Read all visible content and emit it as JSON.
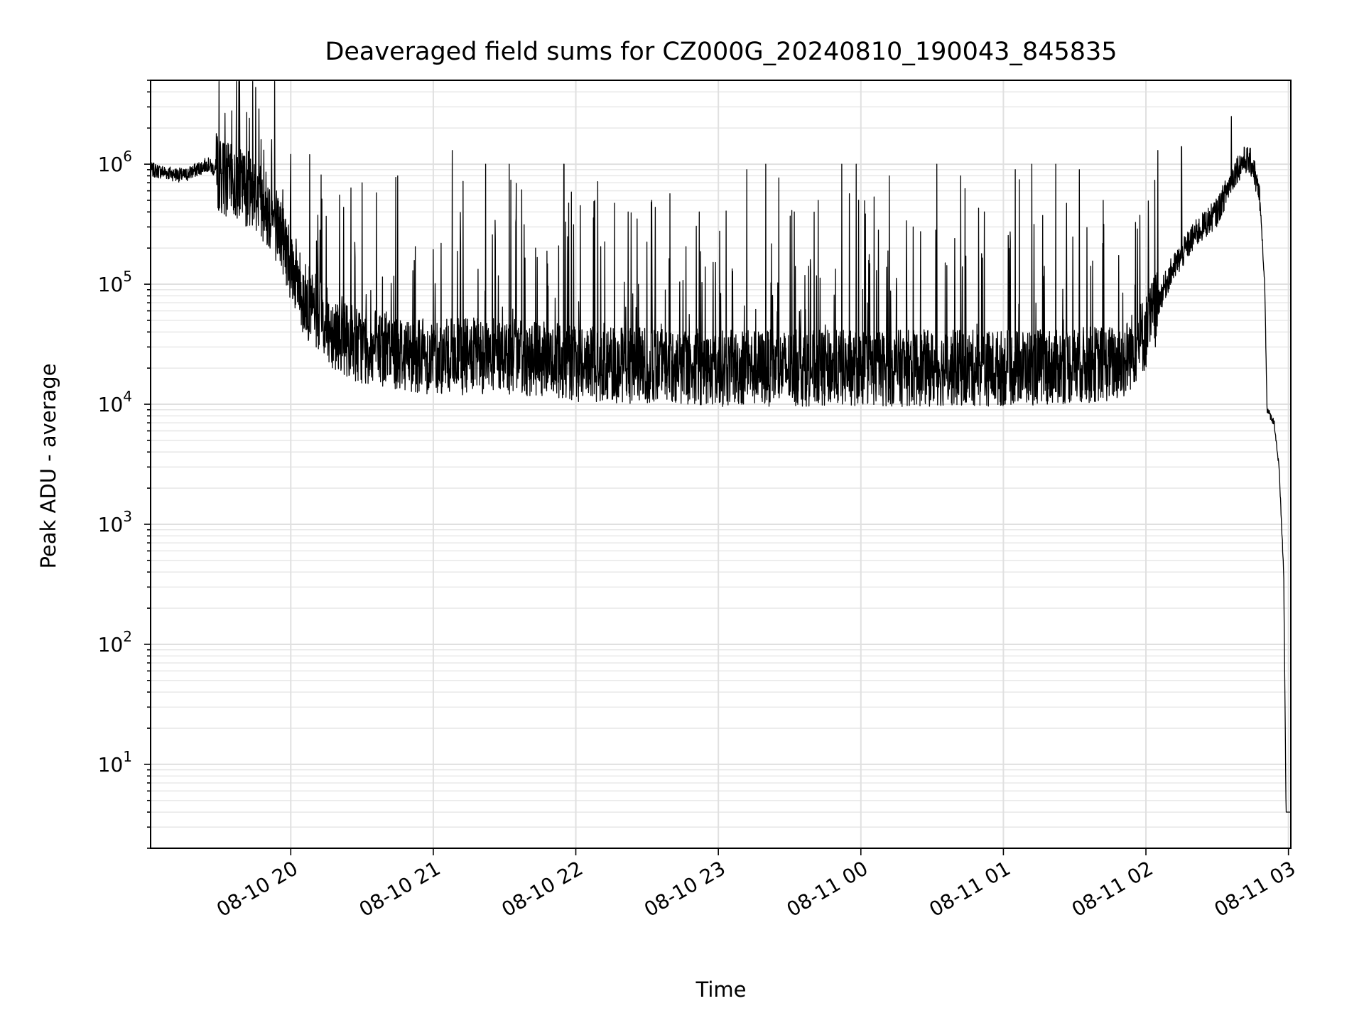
{
  "chart_data": {
    "type": "line",
    "title": "Deaveraged field sums for CZ000G_20240810_190043_845835",
    "xlabel": "Time",
    "ylabel": "Peak ADU - average",
    "yscale": "log",
    "ylim": [
      2,
      5000000
    ],
    "xlim": [
      "2024-08-10 19:01",
      "2024-08-11 03:01"
    ],
    "grid": true,
    "line_color": "#000000",
    "x_ticks": [
      {
        "t": "2024-08-10 20:00",
        "label": "08-10 20"
      },
      {
        "t": "2024-08-10 21:00",
        "label": "08-10 21"
      },
      {
        "t": "2024-08-10 22:00",
        "label": "08-10 22"
      },
      {
        "t": "2024-08-10 23:00",
        "label": "08-10 23"
      },
      {
        "t": "2024-08-11 00:00",
        "label": "08-11 00"
      },
      {
        "t": "2024-08-11 01:00",
        "label": "08-11 01"
      },
      {
        "t": "2024-08-11 02:00",
        "label": "08-11 02"
      },
      {
        "t": "2024-08-11 03:00",
        "label": "08-11 03"
      }
    ],
    "y_ticks": [
      {
        "value": 10,
        "base": "10",
        "exp": "1"
      },
      {
        "value": 100,
        "base": "10",
        "exp": "2"
      },
      {
        "value": 1000,
        "base": "10",
        "exp": "3"
      },
      {
        "value": 10000,
        "base": "10",
        "exp": "4"
      },
      {
        "value": 100000,
        "base": "10",
        "exp": "5"
      },
      {
        "value": 1000000,
        "base": "10",
        "exp": "6"
      }
    ],
    "series": [
      {
        "baseline": [
          [
            "2024-08-10 19:01",
            900000
          ],
          [
            "2024-08-10 19:15",
            800000
          ],
          [
            "2024-08-10 19:25",
            1000000
          ],
          [
            "2024-08-10 19:35",
            700000
          ],
          [
            "2024-08-10 19:45",
            600000
          ],
          [
            "2024-08-10 19:55",
            300000
          ],
          [
            "2024-08-10 20:05",
            80000
          ],
          [
            "2024-08-10 20:15",
            45000
          ],
          [
            "2024-08-10 20:30",
            30000
          ],
          [
            "2024-08-10 21:00",
            25000
          ],
          [
            "2024-08-10 21:30",
            25000
          ],
          [
            "2024-08-10 22:00",
            22000
          ],
          [
            "2024-08-10 23:00",
            20000
          ],
          [
            "2024-08-11 00:00",
            20000
          ],
          [
            "2024-08-11 01:00",
            20000
          ],
          [
            "2024-08-11 01:50",
            22000
          ],
          [
            "2024-08-11 02:00",
            40000
          ],
          [
            "2024-08-11 02:10",
            120000
          ],
          [
            "2024-08-11 02:20",
            250000
          ],
          [
            "2024-08-11 02:30",
            400000
          ],
          [
            "2024-08-11 02:38",
            900000
          ],
          [
            "2024-08-11 02:42",
            1100000
          ],
          [
            "2024-08-11 02:45",
            1000000
          ],
          [
            "2024-08-11 02:48",
            500000
          ],
          [
            "2024-08-11 02:50",
            100000
          ],
          [
            "2024-08-11 02:51",
            9000
          ],
          [
            "2024-08-11 02:54",
            7000
          ],
          [
            "2024-08-11 02:56",
            3000
          ],
          [
            "2024-08-11 02:58",
            400
          ],
          [
            "2024-08-11 02:59",
            4
          ],
          [
            "2024-08-11 03:01",
            4
          ]
        ],
        "spikes": [
          [
            "2024-08-10 19:52",
            1600000
          ],
          [
            "2024-08-10 20:08",
            1200000
          ],
          [
            "2024-08-10 20:30",
            700000
          ],
          [
            "2024-08-10 20:45",
            800000
          ],
          [
            "2024-08-10 21:08",
            1300000
          ],
          [
            "2024-08-10 21:22",
            1000000
          ],
          [
            "2024-08-10 21:32",
            1000000
          ],
          [
            "2024-08-10 21:55",
            1000000
          ],
          [
            "2024-08-10 22:08",
            500000
          ],
          [
            "2024-08-10 22:22",
            400000
          ],
          [
            "2024-08-10 22:32",
            500000
          ],
          [
            "2024-08-10 22:52",
            400000
          ],
          [
            "2024-08-10 23:12",
            900000
          ],
          [
            "2024-08-10 23:20",
            1000000
          ],
          [
            "2024-08-10 23:32",
            400000
          ],
          [
            "2024-08-10 23:42",
            500000
          ],
          [
            "2024-08-10 23:52",
            1000000
          ],
          [
            "2024-08-10 23:58",
            1000000
          ],
          [
            "2024-08-11 00:12",
            800000
          ],
          [
            "2024-08-11 00:22",
            300000
          ],
          [
            "2024-08-11 00:32",
            1000000
          ],
          [
            "2024-08-11 00:42",
            800000
          ],
          [
            "2024-08-11 00:52",
            400000
          ],
          [
            "2024-08-11 01:05",
            900000
          ],
          [
            "2024-08-11 01:12",
            1000000
          ],
          [
            "2024-08-11 01:22",
            1000000
          ],
          [
            "2024-08-11 01:32",
            900000
          ],
          [
            "2024-08-11 01:42",
            500000
          ],
          [
            "2024-08-11 02:05",
            1300000
          ],
          [
            "2024-08-11 02:15",
            1400000
          ],
          [
            "2024-08-11 02:36",
            2500000
          ]
        ]
      }
    ]
  }
}
